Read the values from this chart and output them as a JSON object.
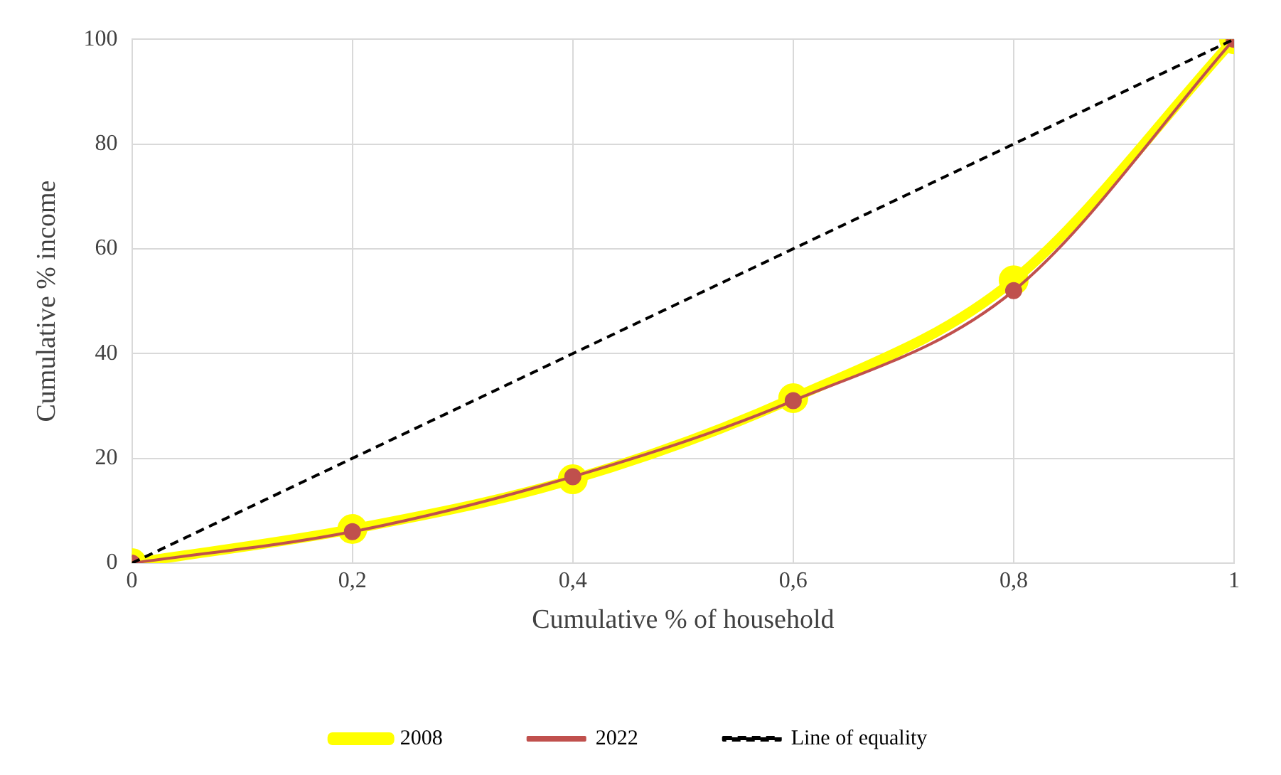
{
  "chart_data": {
    "type": "line",
    "xlabel": "Cumulative % of household",
    "ylabel": "Cumulative % income",
    "x": [
      0,
      0.2,
      0.4,
      0.6,
      0.8,
      1
    ],
    "series": [
      {
        "name": "2008",
        "color": "#ffff00",
        "values": [
          0,
          6.5,
          16,
          31.5,
          54,
          100
        ],
        "marker": "circle"
      },
      {
        "name": "2022",
        "color": "#c0504d",
        "values": [
          0,
          6,
          16.5,
          31,
          52,
          100
        ],
        "marker": "circle"
      },
      {
        "name": "Line of equality",
        "color": "#000000",
        "values": [
          0,
          20,
          40,
          60,
          80,
          100
        ],
        "marker": "none",
        "line_style": "dashed"
      }
    ],
    "xlim": [
      0,
      1
    ],
    "xticks": [
      0,
      {
        "value": 0.2,
        "label": "0,2"
      },
      {
        "value": 0.4,
        "label": "0,4"
      },
      {
        "value": 0.6,
        "label": "0,6"
      },
      {
        "value": 0.8,
        "label": "0,8"
      },
      1
    ],
    "ylim": [
      0,
      100
    ],
    "yticks": [
      0,
      20,
      40,
      60,
      80,
      100
    ],
    "grid": true,
    "legend": "bottom"
  }
}
